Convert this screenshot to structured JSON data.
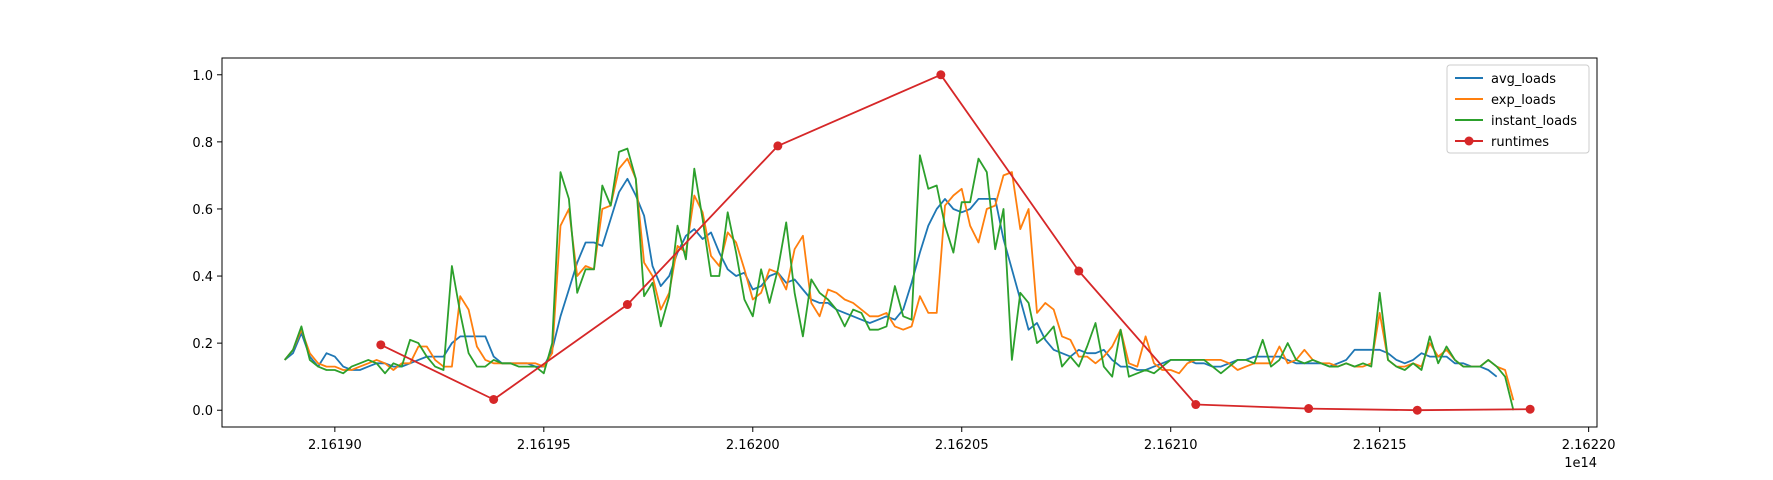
{
  "chart_data": {
    "type": "line",
    "title": "",
    "xlabel": "",
    "ylabel": "",
    "x_offset_label": "1e14",
    "xlim": [
      216187.3,
      216220.2
    ],
    "ylim": [
      -0.05,
      1.05
    ],
    "xticks": [
      216190,
      216195,
      216200,
      216205,
      216210,
      216215,
      216220
    ],
    "xtick_labels": [
      "2.16190",
      "2.16195",
      "2.16200",
      "2.16205",
      "2.16210",
      "2.16215",
      "2.16220"
    ],
    "yticks": [
      0.0,
      0.2,
      0.4,
      0.6,
      0.8,
      1.0
    ],
    "ytick_labels": [
      "0.0",
      "0.2",
      "0.4",
      "0.6",
      "0.8",
      "1.0"
    ],
    "grid": false,
    "legend_position": "top-right",
    "x_start": 216188.8,
    "x_step": 0.2,
    "series": [
      {
        "name": "avg_loads",
        "color": "#1f77b4",
        "marker": false,
        "values": [
          0.15,
          0.17,
          0.23,
          0.16,
          0.13,
          0.17,
          0.16,
          0.13,
          0.12,
          0.12,
          0.13,
          0.14,
          0.14,
          0.13,
          0.13,
          0.14,
          0.15,
          0.16,
          0.16,
          0.16,
          0.2,
          0.22,
          0.22,
          0.22,
          0.22,
          0.16,
          0.14,
          0.14,
          0.14,
          0.14,
          0.13,
          0.13,
          0.18,
          0.28,
          0.36,
          0.44,
          0.5,
          0.5,
          0.49,
          0.57,
          0.65,
          0.69,
          0.64,
          0.58,
          0.43,
          0.37,
          0.4,
          0.47,
          0.52,
          0.54,
          0.51,
          0.53,
          0.47,
          0.42,
          0.4,
          0.41,
          0.36,
          0.37,
          0.4,
          0.41,
          0.38,
          0.39,
          0.36,
          0.33,
          0.32,
          0.32,
          0.3,
          0.29,
          0.28,
          0.27,
          0.26,
          0.27,
          0.28,
          0.27,
          0.3,
          0.38,
          0.47,
          0.55,
          0.6,
          0.63,
          0.6,
          0.59,
          0.6,
          0.63,
          0.63,
          0.63,
          0.51,
          0.42,
          0.33,
          0.24,
          0.26,
          0.21,
          0.18,
          0.17,
          0.16,
          0.18,
          0.17,
          0.17,
          0.18,
          0.15,
          0.13,
          0.13,
          0.12,
          0.12,
          0.13,
          0.14,
          0.15,
          0.15,
          0.15,
          0.14,
          0.14,
          0.13,
          0.13,
          0.14,
          0.15,
          0.15,
          0.16,
          0.16,
          0.16,
          0.16,
          0.15,
          0.14,
          0.14,
          0.14,
          0.14,
          0.13,
          0.14,
          0.15,
          0.18,
          0.18,
          0.18,
          0.18,
          0.17,
          0.15,
          0.14,
          0.15,
          0.17,
          0.16,
          0.16,
          0.16,
          0.14,
          0.14,
          0.13,
          0.13,
          0.12,
          0.1
        ]
      },
      {
        "name": "exp_loads",
        "color": "#ff7f0e",
        "marker": false,
        "values": [
          0.15,
          0.18,
          0.24,
          0.17,
          0.14,
          0.13,
          0.13,
          0.12,
          0.12,
          0.13,
          0.14,
          0.15,
          0.14,
          0.12,
          0.14,
          0.14,
          0.19,
          0.19,
          0.15,
          0.13,
          0.13,
          0.34,
          0.3,
          0.19,
          0.15,
          0.14,
          0.14,
          0.14,
          0.14,
          0.14,
          0.14,
          0.13,
          0.17,
          0.55,
          0.6,
          0.4,
          0.43,
          0.42,
          0.6,
          0.61,
          0.72,
          0.75,
          0.69,
          0.44,
          0.4,
          0.3,
          0.35,
          0.49,
          0.47,
          0.64,
          0.59,
          0.46,
          0.43,
          0.53,
          0.5,
          0.42,
          0.33,
          0.35,
          0.42,
          0.41,
          0.36,
          0.48,
          0.52,
          0.32,
          0.28,
          0.36,
          0.35,
          0.33,
          0.32,
          0.3,
          0.28,
          0.28,
          0.29,
          0.25,
          0.24,
          0.25,
          0.34,
          0.29,
          0.29,
          0.61,
          0.64,
          0.66,
          0.55,
          0.5,
          0.6,
          0.61,
          0.7,
          0.71,
          0.54,
          0.6,
          0.29,
          0.32,
          0.3,
          0.22,
          0.21,
          0.16,
          0.16,
          0.14,
          0.16,
          0.19,
          0.24,
          0.14,
          0.13,
          0.22,
          0.14,
          0.12,
          0.12,
          0.11,
          0.14,
          0.15,
          0.15,
          0.15,
          0.15,
          0.14,
          0.12,
          0.13,
          0.14,
          0.14,
          0.14,
          0.19,
          0.14,
          0.15,
          0.18,
          0.15,
          0.14,
          0.14,
          0.13,
          0.14,
          0.13,
          0.13,
          0.14,
          0.29,
          0.15,
          0.13,
          0.13,
          0.14,
          0.13,
          0.2,
          0.16,
          0.18,
          0.15,
          0.13,
          0.13,
          0.13,
          0.15,
          0.13,
          0.12,
          0.03
        ]
      },
      {
        "name": "instant_loads",
        "color": "#2ca02c",
        "marker": false,
        "values": [
          0.15,
          0.18,
          0.25,
          0.15,
          0.13,
          0.12,
          0.12,
          0.11,
          0.13,
          0.14,
          0.15,
          0.14,
          0.11,
          0.14,
          0.13,
          0.21,
          0.2,
          0.16,
          0.13,
          0.12,
          0.43,
          0.29,
          0.17,
          0.13,
          0.13,
          0.15,
          0.14,
          0.14,
          0.13,
          0.13,
          0.13,
          0.11,
          0.2,
          0.71,
          0.63,
          0.35,
          0.42,
          0.42,
          0.67,
          0.61,
          0.77,
          0.78,
          0.69,
          0.34,
          0.38,
          0.25,
          0.34,
          0.55,
          0.45,
          0.72,
          0.57,
          0.4,
          0.4,
          0.59,
          0.47,
          0.33,
          0.28,
          0.42,
          0.32,
          0.42,
          0.56,
          0.35,
          0.22,
          0.39,
          0.35,
          0.33,
          0.3,
          0.25,
          0.3,
          0.29,
          0.24,
          0.24,
          0.25,
          0.37,
          0.28,
          0.27,
          0.76,
          0.66,
          0.67,
          0.55,
          0.47,
          0.62,
          0.62,
          0.75,
          0.71,
          0.48,
          0.6,
          0.15,
          0.35,
          0.32,
          0.2,
          0.22,
          0.25,
          0.13,
          0.16,
          0.13,
          0.19,
          0.26,
          0.13,
          0.1,
          0.24,
          0.1,
          0.11,
          0.12,
          0.11,
          0.13,
          0.15,
          0.15,
          0.15,
          0.15,
          0.15,
          0.13,
          0.11,
          0.13,
          0.15,
          0.15,
          0.14,
          0.21,
          0.13,
          0.15,
          0.2,
          0.15,
          0.14,
          0.15,
          0.14,
          0.13,
          0.13,
          0.14,
          0.13,
          0.14,
          0.13,
          0.35,
          0.15,
          0.13,
          0.12,
          0.14,
          0.12,
          0.22,
          0.14,
          0.19,
          0.15,
          0.13,
          0.13,
          0.13,
          0.15,
          0.13,
          0.1,
          0.0
        ]
      },
      {
        "name": "runtimes",
        "color": "#d62728",
        "marker": true,
        "x": [
          216191.1,
          216193.8,
          216197.0,
          216200.6,
          216204.5,
          216207.8,
          216210.6,
          216213.3,
          216215.9,
          216218.6
        ],
        "values": [
          0.195,
          0.032,
          0.315,
          0.788,
          1.0,
          0.415,
          0.017,
          0.005,
          0.0,
          0.003
        ]
      }
    ]
  }
}
